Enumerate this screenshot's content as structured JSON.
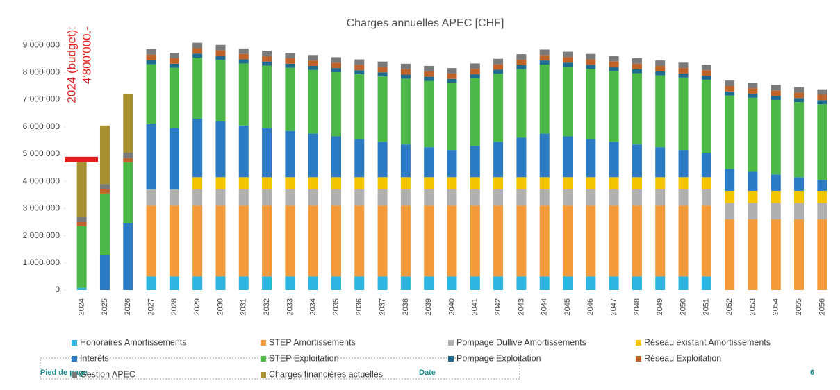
{
  "chart_data": {
    "type": "stacked_bar",
    "title": "Charges annuelles APEC [CHF]",
    "categories": [
      "2024",
      "2025",
      "2026",
      "2027",
      "2028",
      "2029",
      "2030",
      "2031",
      "2032",
      "2033",
      "2034",
      "2035",
      "2036",
      "2037",
      "2038",
      "2039",
      "2040",
      "2041",
      "2042",
      "2043",
      "2044",
      "2045",
      "2046",
      "2047",
      "2048",
      "2049",
      "2050",
      "2051",
      "2052",
      "2053",
      "2054",
      "2055",
      "2056"
    ],
    "series": [
      {
        "name": "Honoraires Amortissements",
        "color": "#2bb5e0",
        "values": [
          80000,
          0,
          0,
          500000,
          500000,
          500000,
          500000,
          500000,
          500000,
          500000,
          500000,
          500000,
          500000,
          500000,
          500000,
          500000,
          500000,
          500000,
          500000,
          500000,
          500000,
          500000,
          500000,
          500000,
          500000,
          500000,
          500000,
          500000,
          0,
          0,
          0,
          0,
          0
        ]
      },
      {
        "name": "STEP Amortissements",
        "color": "#f39a3a",
        "values": [
          0,
          0,
          0,
          2600000,
          2600000,
          2600000,
          2600000,
          2600000,
          2600000,
          2600000,
          2600000,
          2600000,
          2600000,
          2600000,
          2600000,
          2600000,
          2600000,
          2600000,
          2600000,
          2600000,
          2600000,
          2600000,
          2600000,
          2600000,
          2600000,
          2600000,
          2600000,
          2600000,
          2600000,
          2600000,
          2600000,
          2600000,
          2600000
        ]
      },
      {
        "name": "Pompage Dullive Amortissements",
        "color": "#b0b0b0",
        "values": [
          0,
          0,
          0,
          600000,
          600000,
          600000,
          600000,
          600000,
          600000,
          600000,
          600000,
          600000,
          600000,
          600000,
          600000,
          600000,
          600000,
          600000,
          600000,
          600000,
          600000,
          600000,
          600000,
          600000,
          600000,
          600000,
          600000,
          600000,
          600000,
          600000,
          600000,
          600000,
          600000
        ]
      },
      {
        "name": "Réseau existant Amortissements",
        "color": "#f5c400",
        "values": [
          0,
          0,
          0,
          0,
          0,
          450000,
          450000,
          450000,
          450000,
          450000,
          450000,
          450000,
          450000,
          450000,
          450000,
          450000,
          450000,
          450000,
          450000,
          450000,
          450000,
          450000,
          450000,
          450000,
          450000,
          450000,
          450000,
          450000,
          450000,
          450000,
          450000,
          450000,
          450000
        ]
      },
      {
        "name": "Intérêts",
        "color": "#2a7ac4",
        "values": [
          0,
          1300000,
          2450000,
          2400000,
          2250000,
          2150000,
          2050000,
          1900000,
          1800000,
          1700000,
          1600000,
          1500000,
          1400000,
          1300000,
          1200000,
          1100000,
          1000000,
          1150000,
          1300000,
          1450000,
          1600000,
          1500000,
          1400000,
          1300000,
          1200000,
          1100000,
          1000000,
          900000,
          800000,
          700000,
          600000,
          500000,
          400000
        ]
      },
      {
        "name": "STEP Exploitation",
        "color": "#4cb848",
        "values": [
          2270000,
          2250000,
          2250000,
          2200000,
          2220000,
          2240000,
          2260000,
          2280000,
          2300000,
          2320000,
          2340000,
          2360000,
          2380000,
          2400000,
          2420000,
          2440000,
          2460000,
          2480000,
          2500000,
          2520000,
          2540000,
          2560000,
          2580000,
          2600000,
          2620000,
          2640000,
          2660000,
          2680000,
          2700000,
          2720000,
          2740000,
          2760000,
          2780000
        ]
      },
      {
        "name": "Pompage Exploitation",
        "color": "#1f6b8f",
        "values": [
          0,
          0,
          0,
          150000,
          150000,
          150000,
          150000,
          150000,
          150000,
          150000,
          150000,
          150000,
          150000,
          150000,
          150000,
          150000,
          150000,
          150000,
          150000,
          150000,
          150000,
          150000,
          150000,
          150000,
          150000,
          150000,
          150000,
          150000,
          150000,
          150000,
          150000,
          150000,
          150000
        ]
      },
      {
        "name": "Réseau Exploitation",
        "color": "#c0632a",
        "values": [
          150000,
          150000,
          150000,
          200000,
          200000,
          200000,
          200000,
          200000,
          200000,
          200000,
          200000,
          200000,
          200000,
          200000,
          200000,
          200000,
          200000,
          200000,
          200000,
          200000,
          200000,
          200000,
          200000,
          200000,
          200000,
          200000,
          200000,
          200000,
          200000,
          200000,
          200000,
          200000,
          200000
        ]
      },
      {
        "name": "Gestion APEC",
        "color": "#7a7a7a",
        "values": [
          200000,
          200000,
          200000,
          200000,
          200000,
          200000,
          200000,
          200000,
          200000,
          200000,
          200000,
          200000,
          200000,
          200000,
          200000,
          200000,
          200000,
          200000,
          200000,
          200000,
          200000,
          200000,
          200000,
          200000,
          200000,
          200000,
          200000,
          200000,
          200000,
          200000,
          200000,
          200000,
          200000
        ]
      },
      {
        "name": "Charges financières actuelles",
        "color": "#a89230",
        "values": [
          2050000,
          2150000,
          2150000,
          0,
          0,
          0,
          0,
          0,
          0,
          0,
          0,
          0,
          0,
          0,
          0,
          0,
          0,
          0,
          0,
          0,
          0,
          0,
          0,
          0,
          0,
          0,
          0,
          0,
          0,
          0,
          0,
          0,
          0
        ]
      }
    ],
    "ylim": [
      0,
      9300000
    ],
    "yticks": [
      0,
      {
        "value": 1000000,
        "label": "1 000 000"
      },
      {
        "value": 2000000,
        "label": "2 000 000"
      },
      {
        "value": 3000000,
        "label": "3 000 000"
      },
      {
        "value": 4000000,
        "label": "4 000 000"
      },
      {
        "value": 5000000,
        "label": "5 000 000"
      },
      {
        "value": 6000000,
        "label": "6 000 000"
      },
      {
        "value": 7000000,
        "label": "7 000 000"
      },
      {
        "value": 8000000,
        "label": "8 000 000"
      },
      {
        "value": 9000000,
        "label": "9 000 000"
      }
    ],
    "budget": {
      "value": 4800000,
      "label": [
        "2024 (budget):",
        "4'800'000.-"
      ],
      "color": "#e02020"
    },
    "legend": "bottom"
  },
  "footer": {
    "left": "Pied de page",
    "center": "Date",
    "right": "6"
  }
}
